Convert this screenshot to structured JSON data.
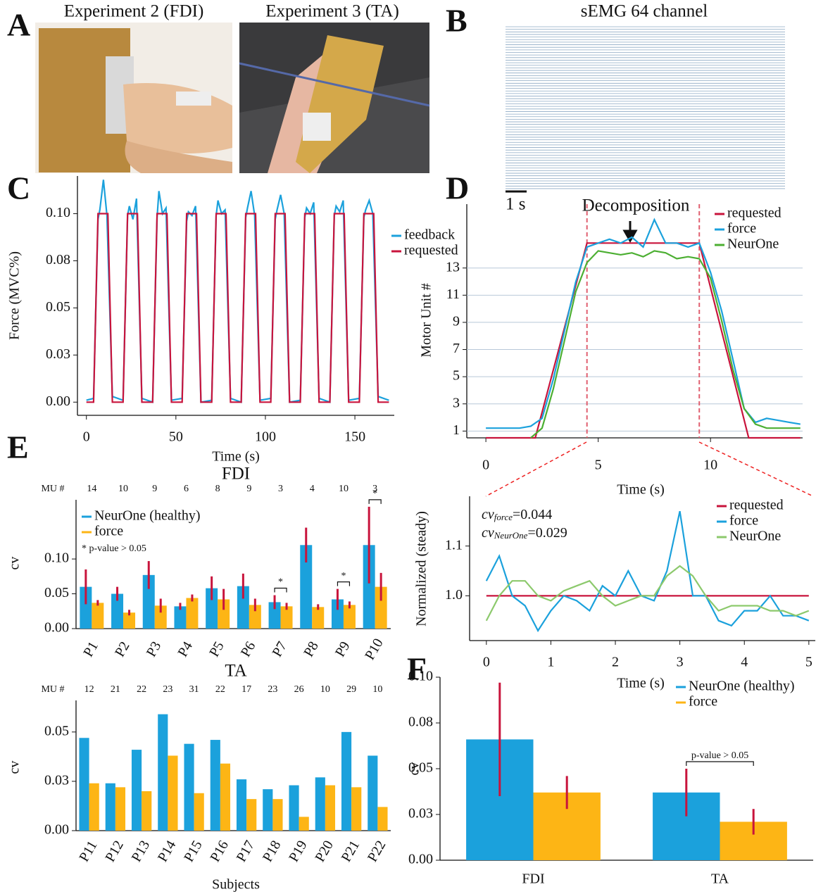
{
  "panel_labels": [
    "A",
    "B",
    "C",
    "D",
    "E",
    "F"
  ],
  "panel_a": {
    "titles": [
      "Experiment 2 (FDI)",
      "Experiment 3 (TA)"
    ]
  },
  "panel_b": {
    "title": "sEMG 64 channel",
    "scale_label": "1 s"
  },
  "chart_data": [
    {
      "type": "line",
      "xlabel": "Time (s)",
      "ylabel": "Force (MVC%)",
      "xlim": [
        -5,
        172
      ],
      "xticks": [
        0,
        50,
        100,
        150
      ],
      "ylim": [
        -0.007,
        0.12
      ],
      "yticks": [
        {
          "value": 0,
          "label": "0.00"
        },
        {
          "value": 0.025,
          "label": "0.03"
        },
        0.05,
        {
          "value": 0.075,
          "label": "0.08"
        },
        {
          "value": 0.1,
          "label": "0.10"
        }
      ],
      "legend": "center right",
      "series": [
        {
          "name": "feedback",
          "color": "#1ba1dc",
          "x": [
            0,
            4,
            6.5,
            7.5,
            9.5,
            11.5,
            14.5,
            20.5,
            23,
            24,
            26,
            28,
            31,
            37,
            39.5,
            40.5,
            42.5,
            44.5,
            47.5,
            53.5,
            56,
            57,
            59,
            61,
            64,
            70,
            72.5,
            73.5,
            75.5,
            77.5,
            80.5,
            86.5,
            89,
            90,
            92,
            94,
            97,
            103,
            105.5,
            106.5,
            108.5,
            110.5,
            113.5,
            119.5,
            122,
            123,
            125,
            127,
            130,
            136,
            138.5,
            139.5,
            141.5,
            143.5,
            146.5,
            152.5,
            155,
            156,
            158,
            160,
            163,
            169
          ],
          "values": [
            0.001,
            0.002,
            0.097,
            0.102,
            0.118,
            0.099,
            0.003,
            0.001,
            0.099,
            0.104,
            0.097,
            0.108,
            0.002,
            0.0,
            0.098,
            0.112,
            0.1,
            0.103,
            0.001,
            0.002,
            0.096,
            0.101,
            0.099,
            0.104,
            0.0,
            0.001,
            0.099,
            0.107,
            0.1,
            0.102,
            0.002,
            0.0,
            0.098,
            0.103,
            0.112,
            0.099,
            0.001,
            0.002,
            0.097,
            0.102,
            0.11,
            0.1,
            0.0,
            0.001,
            0.098,
            0.103,
            0.1,
            0.106,
            0.002,
            0.0,
            0.099,
            0.104,
            0.101,
            0.107,
            0.001,
            0.002,
            0.098,
            0.102,
            0.107,
            0.1,
            0.003,
            0.001
          ]
        },
        {
          "name": "requested",
          "color": "#c8143c",
          "x": [
            0,
            4,
            6.5,
            12,
            14.5,
            20.5,
            23,
            28.5,
            31,
            37,
            39.5,
            45,
            47.5,
            53.5,
            56,
            61.5,
            64,
            70,
            72.5,
            78,
            80.5,
            86.5,
            89,
            94.5,
            97,
            103,
            105.5,
            111,
            113.5,
            119.5,
            122,
            127.5,
            130,
            136,
            138.5,
            144,
            146.5,
            152.5,
            155,
            160.5,
            163,
            169
          ],
          "values": [
            0,
            0,
            0.1,
            0.1,
            0,
            0,
            0.1,
            0.1,
            0,
            0,
            0.1,
            0.1,
            0,
            0,
            0.1,
            0.1,
            0,
            0,
            0.1,
            0.1,
            0,
            0,
            0.1,
            0.1,
            0,
            0,
            0.1,
            0.1,
            0,
            0,
            0.1,
            0.1,
            0,
            0,
            0.1,
            0.1,
            0,
            0,
            0.1,
            0.1,
            0,
            0
          ]
        }
      ]
    },
    {
      "type": "line",
      "title": "Decomposition",
      "xlabel": "Time (s)",
      "ylabel": "Motor Unit #",
      "xlim": [
        -0.85,
        14.1
      ],
      "xticks": [
        0,
        5,
        10
      ],
      "ylim": [
        0.5,
        17.7
      ],
      "yticks": [
        1,
        3,
        5,
        7,
        9,
        11,
        13
      ],
      "grid": true,
      "y2lim": [
        0,
        1.2
      ],
      "markers": [
        4.5,
        9.5
      ],
      "legend": "upper right",
      "x": [
        0,
        0.5,
        1,
        1.5,
        2,
        2.5,
        3,
        3.5,
        4,
        4.5,
        5,
        5.5,
        6,
        6.5,
        7,
        7.5,
        8,
        8.5,
        9,
        9.5,
        10,
        10.5,
        11,
        11.5,
        12,
        12.5,
        13,
        13.5,
        14
      ],
      "series": [
        {
          "name": "requested",
          "color": "#c8143c",
          "axis": "y2",
          "x": [
            0,
            2.2,
            4.5,
            9.5,
            11.7,
            14
          ],
          "values": [
            0,
            0,
            1,
            1,
            0,
            0
          ]
        },
        {
          "name": "force",
          "color": "#1ba1dc",
          "axis": "y2",
          "values": [
            0.05,
            0.05,
            0.05,
            0.05,
            0.06,
            0.1,
            0.3,
            0.55,
            0.8,
            0.98,
            1.0,
            1.02,
            1.0,
            1.03,
            0.98,
            1.12,
            1.0,
            1.0,
            0.98,
            1.0,
            0.85,
            0.65,
            0.4,
            0.15,
            0.08,
            0.1,
            0.09,
            0.08,
            0.07
          ]
        },
        {
          "name": "NeurOne",
          "color": "#4caf32",
          "axis": "y2",
          "values": [
            null,
            null,
            null,
            null,
            0.0,
            0.05,
            0.25,
            0.5,
            0.75,
            0.9,
            0.96,
            0.95,
            0.94,
            0.95,
            0.93,
            0.96,
            0.95,
            0.92,
            0.93,
            0.92,
            0.82,
            0.6,
            0.35,
            0.15,
            0.07,
            0.05,
            0.05,
            0.05,
            0.05
          ]
        }
      ]
    },
    {
      "type": "line",
      "xlabel": "Time (s)",
      "ylabel": "Normalized (steady)",
      "xlim": [
        -0.26,
        5.1
      ],
      "xticks": [
        0,
        1,
        2,
        3,
        4,
        5
      ],
      "ylim": [
        0.91,
        1.2
      ],
      "yticks": [
        {
          "value": 1,
          "label": "1.0"
        },
        1.1
      ],
      "legend": "upper right",
      "annotations": [
        {
          "text": "cv",
          "subscript": "force",
          "suffix": "=0.044"
        },
        {
          "text": "cv",
          "subscript": "NeurOne",
          "suffix": "=0.029"
        }
      ],
      "x": [
        0,
        0.2,
        0.4,
        0.6,
        0.8,
        1,
        1.2,
        1.4,
        1.6,
        1.8,
        2,
        2.2,
        2.4,
        2.6,
        2.8,
        3,
        3.2,
        3.4,
        3.6,
        3.8,
        4,
        4.2,
        4.4,
        4.6,
        4.8,
        5
      ],
      "series": [
        {
          "name": "requested",
          "color": "#c8143c",
          "x": [
            0,
            5
          ],
          "values": [
            1,
            1
          ]
        },
        {
          "name": "force",
          "color": "#1ba1dc",
          "values": [
            1.03,
            1.08,
            1.0,
            0.98,
            0.93,
            0.97,
            1.0,
            0.99,
            0.97,
            1.02,
            1.0,
            1.05,
            1.0,
            0.99,
            1.05,
            1.17,
            1.0,
            1.0,
            0.95,
            0.94,
            0.97,
            0.97,
            1.0,
            0.96,
            0.96,
            0.95
          ]
        },
        {
          "name": "NeurOne",
          "color": "#8cc96c",
          "values": [
            0.95,
            1.0,
            1.03,
            1.03,
            1.0,
            0.99,
            1.01,
            1.02,
            1.03,
            1.0,
            0.98,
            0.99,
            1.0,
            1.0,
            1.04,
            1.06,
            1.04,
            1.0,
            0.97,
            0.98,
            0.98,
            0.98,
            0.97,
            0.97,
            0.96,
            0.97
          ]
        }
      ]
    },
    {
      "type": "bar",
      "title": "FDI",
      "ylabel": "cv",
      "ylim": [
        0,
        0.185
      ],
      "yticks": [
        {
          "value": 0,
          "label": "0.00"
        },
        0.05,
        {
          "value": 0.1,
          "label": "0.10"
        }
      ],
      "legend": "upper left",
      "note": "* p-value > 0.05",
      "mu_label": "MU #",
      "mu_counts": [
        14,
        10,
        9,
        6,
        8,
        9,
        3,
        4,
        10,
        3
      ],
      "categories": [
        "P1",
        "P2",
        "P3",
        "P4",
        "P5",
        "P6",
        "P7",
        "P8",
        "P9",
        "P10"
      ],
      "significance": [
        null,
        null,
        null,
        null,
        null,
        null,
        "*",
        null,
        "*",
        "*"
      ],
      "series": [
        {
          "name": "NeurOne (healthy)",
          "color": "#1ba1dc",
          "values": [
            0.06,
            0.05,
            0.077,
            0.032,
            0.058,
            0.061,
            0.038,
            0.12,
            0.042,
            0.12
          ],
          "errors": [
            0.025,
            0.01,
            0.02,
            0.005,
            0.017,
            0.018,
            0.01,
            0.025,
            0.015,
            0.055
          ]
        },
        {
          "name": "force",
          "color": "#fdb515",
          "values": [
            0.037,
            0.023,
            0.033,
            0.044,
            0.042,
            0.034,
            0.032,
            0.031,
            0.034,
            0.06
          ],
          "errors": [
            0.004,
            0.004,
            0.01,
            0.005,
            0.015,
            0.009,
            0.005,
            0.004,
            0.005,
            0.02
          ]
        }
      ]
    },
    {
      "type": "bar",
      "title": "TA",
      "xlabel": "Subjects",
      "ylabel": "cv",
      "ylim": [
        0,
        0.066
      ],
      "yticks": [
        {
          "value": 0,
          "label": "0.00"
        },
        {
          "value": 0.025,
          "label": "0.03"
        },
        0.05
      ],
      "mu_label": "MU #",
      "mu_counts": [
        12,
        21,
        22,
        23,
        31,
        22,
        17,
        23,
        26,
        10,
        29,
        10
      ],
      "categories": [
        "P11",
        "P12",
        "P13",
        "P14",
        "P15",
        "P16",
        "P17",
        "P18",
        "P19",
        "P20",
        "P21",
        "P22"
      ],
      "series": [
        {
          "name": "NeurOne (healthy)",
          "color": "#1ba1dc",
          "values": [
            0.047,
            0.024,
            0.041,
            0.059,
            0.044,
            0.046,
            0.026,
            0.021,
            0.023,
            0.027,
            0.05,
            0.038
          ]
        },
        {
          "name": "force",
          "color": "#fdb515",
          "values": [
            0.024,
            0.022,
            0.02,
            0.038,
            0.019,
            0.034,
            0.016,
            0.016,
            0.007,
            0.023,
            0.022,
            0.012
          ]
        }
      ]
    },
    {
      "type": "bar",
      "ylabel": "cv",
      "ylim": [
        0,
        0.1
      ],
      "yticks": [
        {
          "value": 0,
          "label": "0.00"
        },
        {
          "value": 0.025,
          "label": "0.03"
        },
        0.05,
        {
          "value": 0.075,
          "label": "0.08"
        },
        {
          "value": 0.1,
          "label": "0.10"
        }
      ],
      "legend": "upper right",
      "categories": [
        "FDI",
        "TA"
      ],
      "significance": [
        null,
        "p-value > 0.05"
      ],
      "series": [
        {
          "name": "NeurOne (healthy)",
          "color": "#1ba1dc",
          "values": [
            0.066,
            0.037
          ],
          "errors": [
            0.031,
            0.013
          ]
        },
        {
          "name": "force",
          "color": "#fdb515",
          "values": [
            0.037,
            0.021
          ],
          "errors": [
            0.009,
            0.007
          ]
        }
      ]
    }
  ]
}
